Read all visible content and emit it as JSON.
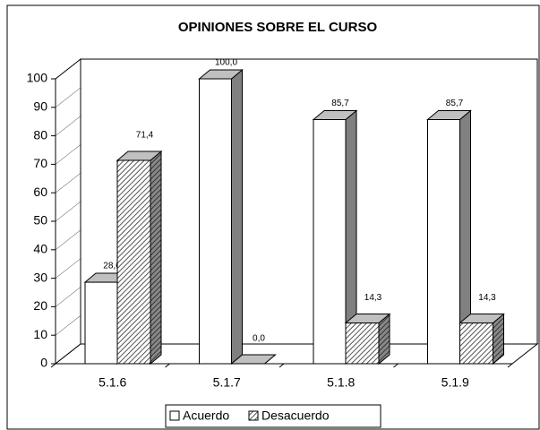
{
  "chart_data": {
    "type": "bar3d",
    "title": "OPINIONES SOBRE EL CURSO",
    "categories": [
      "5.1.6",
      "5.1.7",
      "5.1.8",
      "5.1.9"
    ],
    "series": [
      {
        "name": "Acuerdo",
        "color": "#ffffff",
        "values": [
          28.6,
          100,
          85.7,
          85.7
        ],
        "value_labels": [
          "28,6",
          "100,0",
          "85,7",
          "85,7"
        ]
      },
      {
        "name": "Desacuerdo",
        "color": "#a0a0a0",
        "values": [
          71.4,
          0,
          14.3,
          14.3
        ],
        "value_labels": [
          "71,4",
          "0,0",
          "14,3",
          "14,3"
        ]
      }
    ],
    "ylim": [
      0,
      100
    ],
    "yticks": [
      0,
      10,
      20,
      30,
      40,
      50,
      60,
      70,
      80,
      90,
      100
    ],
    "legend": "bottom"
  }
}
